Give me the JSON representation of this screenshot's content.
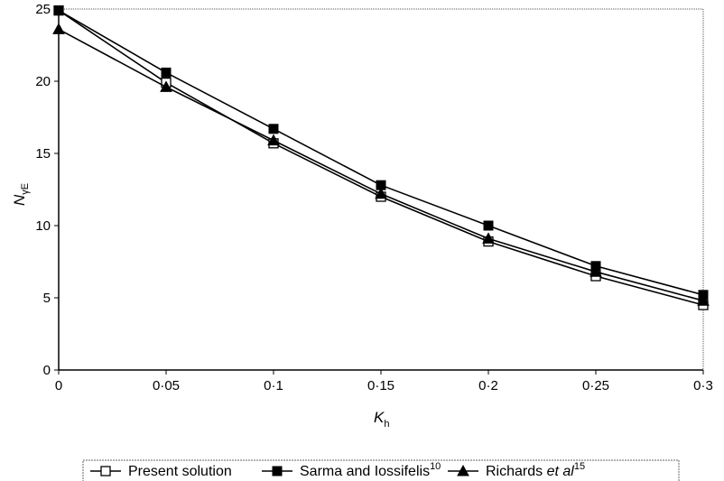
{
  "chart_data": {
    "type": "line",
    "x": [
      0,
      0.05,
      0.1,
      0.15,
      0.2,
      0.25,
      0.3
    ],
    "x_tick_labels": [
      "0",
      "0·05",
      "0·1",
      "0·15",
      "0·2",
      "0·25",
      "0·3"
    ],
    "y_ticks": [
      0,
      5,
      10,
      15,
      20,
      25
    ],
    "y_tick_labels": [
      "0",
      "5",
      "10",
      "15",
      "20",
      "25"
    ],
    "xlim": [
      0,
      0.3
    ],
    "ylim": [
      0,
      25
    ],
    "xlabel": "K",
    "xlabel_sub": "h",
    "ylabel": "N",
    "ylabel_sub": "γE",
    "grid": false,
    "legend_position": "bottom",
    "series": [
      {
        "name": "Present solution",
        "marker": "open-square",
        "color": "#000000",
        "values": [
          24.9,
          19.9,
          15.7,
          12.0,
          8.9,
          6.5,
          4.5
        ]
      },
      {
        "name": "Sarma and Iossifelis",
        "name_sup": "10",
        "marker": "filled-square",
        "color": "#000000",
        "values": [
          24.9,
          20.6,
          16.7,
          12.8,
          10.0,
          7.2,
          5.2
        ]
      },
      {
        "name": "Richards ",
        "name_italic": "et al",
        "name_sup": "15",
        "marker": "filled-triangle",
        "color": "#000000",
        "values": [
          23.6,
          19.6,
          15.9,
          12.2,
          9.1,
          6.8,
          4.8
        ]
      }
    ]
  }
}
